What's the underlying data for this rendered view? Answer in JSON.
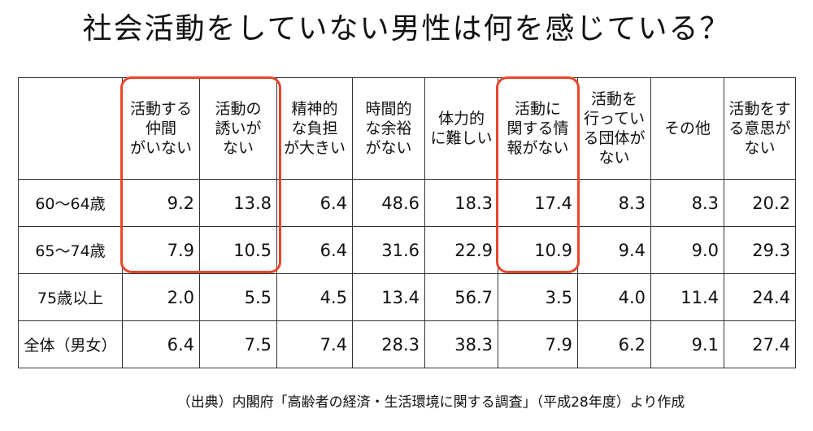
{
  "title": "社会活動をしていない男性は何を感じている？",
  "table": {
    "headers": [
      "",
      "活動する\n仲間\nがいない",
      "活動の\n誘いが\nない",
      "精神的\nな負担\nが大きい",
      "時間的\nな余裕\nがない",
      "体力的\nに難しい",
      "活動に\n関する情\n報がない",
      "活動を\n行ってい\nる団体が\nない",
      "その他",
      "活動をす\nる意思が\nない"
    ],
    "rows": [
      {
        "label": "60～64歳",
        "values": [
          "9.2",
          "13.8",
          "6.4",
          "48.6",
          "18.3",
          "17.4",
          "8.3",
          "8.3",
          "20.2"
        ]
      },
      {
        "label": "65～74歳",
        "values": [
          "7.9",
          "10.5",
          "6.4",
          "31.6",
          "22.9",
          "10.9",
          "9.4",
          "9.0",
          "29.3"
        ]
      },
      {
        "label": "75歳以上",
        "values": [
          "2.0",
          "5.5",
          "4.5",
          "13.4",
          "56.7",
          "3.5",
          "4.0",
          "11.4",
          "24.4"
        ]
      },
      {
        "label": "全体（男女）",
        "values": [
          "6.4",
          "7.5",
          "7.4",
          "28.3",
          "38.3",
          "7.9",
          "6.2",
          "9.1",
          "27.4"
        ]
      }
    ]
  },
  "highlight_color": "#e8452b",
  "source": "（出典）内閣府「高齢者の経済・生活環境に関する調査」（平成28年度）より作成"
}
